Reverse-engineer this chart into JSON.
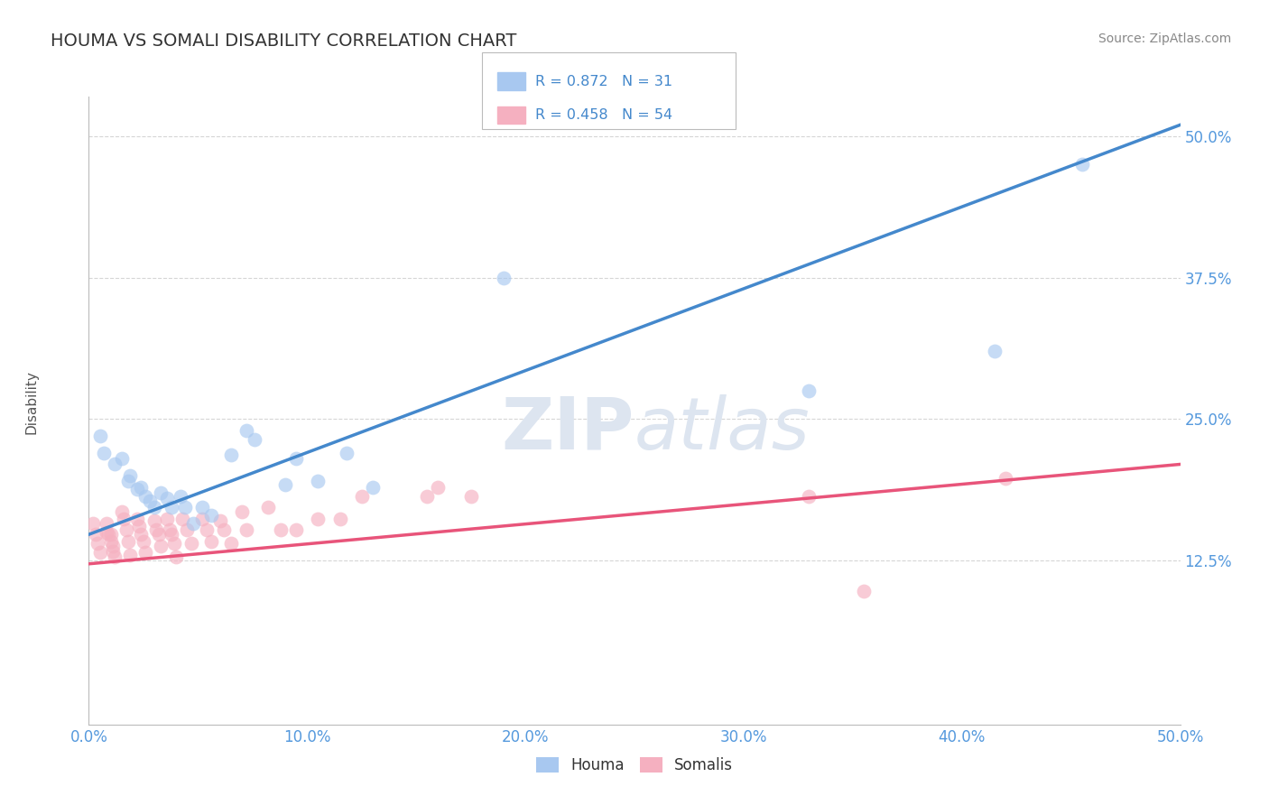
{
  "title": "HOUMA VS SOMALI DISABILITY CORRELATION CHART",
  "source": "Source: ZipAtlas.com",
  "xlim": [
    0.0,
    0.5
  ],
  "ylim": [
    -0.02,
    0.535
  ],
  "ylabel": "Disability",
  "houma_R": 0.872,
  "houma_N": 31,
  "somali_R": 0.458,
  "somali_N": 54,
  "houma_color": "#a8c8f0",
  "somali_color": "#f5b0c0",
  "houma_line_color": "#4488cc",
  "somali_line_color": "#e8547a",
  "legend_text_color": "#4488cc",
  "title_color": "#333333",
  "source_color": "#888888",
  "axis_label_color": "#5599dd",
  "background_color": "#ffffff",
  "watermark_color": "#dde5f0",
  "houma_x": [
    0.005,
    0.007,
    0.012,
    0.015,
    0.018,
    0.019,
    0.022,
    0.024,
    0.026,
    0.028,
    0.03,
    0.033,
    0.036,
    0.038,
    0.042,
    0.044,
    0.048,
    0.052,
    0.056,
    0.065,
    0.072,
    0.076,
    0.09,
    0.095,
    0.105,
    0.118,
    0.13,
    0.19,
    0.33,
    0.415,
    0.455
  ],
  "houma_y": [
    0.235,
    0.22,
    0.21,
    0.215,
    0.195,
    0.2,
    0.188,
    0.19,
    0.182,
    0.178,
    0.172,
    0.185,
    0.18,
    0.172,
    0.182,
    0.172,
    0.158,
    0.172,
    0.165,
    0.218,
    0.24,
    0.232,
    0.192,
    0.215,
    0.195,
    0.22,
    0.19,
    0.375,
    0.275,
    0.31,
    0.475
  ],
  "somali_x": [
    0.002,
    0.003,
    0.004,
    0.005,
    0.008,
    0.008,
    0.009,
    0.01,
    0.01,
    0.011,
    0.011,
    0.012,
    0.015,
    0.016,
    0.017,
    0.018,
    0.019,
    0.022,
    0.023,
    0.024,
    0.025,
    0.026,
    0.03,
    0.031,
    0.032,
    0.033,
    0.036,
    0.037,
    0.038,
    0.039,
    0.04,
    0.043,
    0.045,
    0.047,
    0.052,
    0.054,
    0.056,
    0.06,
    0.062,
    0.065,
    0.07,
    0.072,
    0.082,
    0.088,
    0.095,
    0.105,
    0.115,
    0.125,
    0.155,
    0.16,
    0.175,
    0.33,
    0.355,
    0.42
  ],
  "somali_y": [
    0.158,
    0.148,
    0.14,
    0.132,
    0.158,
    0.15,
    0.148,
    0.148,
    0.142,
    0.138,
    0.133,
    0.128,
    0.168,
    0.162,
    0.152,
    0.142,
    0.13,
    0.162,
    0.155,
    0.148,
    0.142,
    0.132,
    0.16,
    0.152,
    0.148,
    0.138,
    0.162,
    0.152,
    0.148,
    0.14,
    0.128,
    0.162,
    0.152,
    0.14,
    0.162,
    0.152,
    0.142,
    0.16,
    0.152,
    0.14,
    0.168,
    0.152,
    0.172,
    0.152,
    0.152,
    0.162,
    0.162,
    0.182,
    0.182,
    0.19,
    0.182,
    0.182,
    0.098,
    0.198
  ],
  "houma_line_x": [
    0.0,
    0.5
  ],
  "houma_line_y": [
    0.148,
    0.51
  ],
  "somali_line_x": [
    0.0,
    0.5
  ],
  "somali_line_y": [
    0.122,
    0.21
  ],
  "yticks": [
    0.125,
    0.25,
    0.375,
    0.5
  ],
  "ytick_labels": [
    "12.5%",
    "25.0%",
    "37.5%",
    "50.0%"
  ],
  "xticks": [
    0.0,
    0.1,
    0.2,
    0.3,
    0.4,
    0.5
  ],
  "xtick_labels": [
    "0.0%",
    "10.0%",
    "20.0%",
    "30.0%",
    "40.0%",
    "50.0%"
  ]
}
